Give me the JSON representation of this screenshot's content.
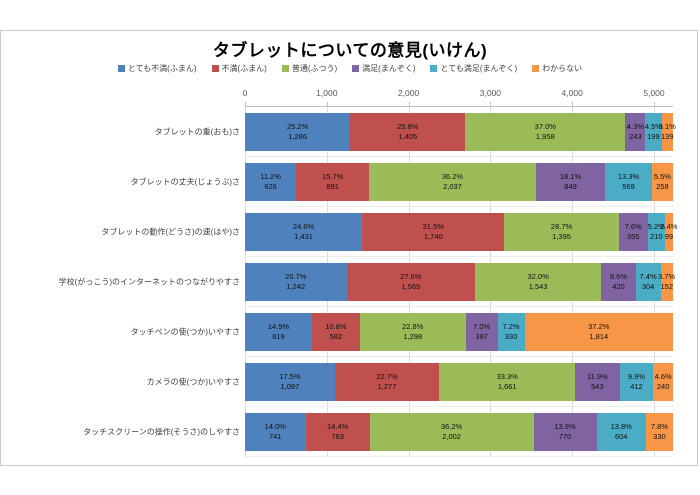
{
  "chart_data": {
    "type": "bar",
    "orientation": "horizontal-stacked",
    "title": "タブレットについての意見(いけん)",
    "legend_position": "top",
    "gridlines": true,
    "series_names": [
      "とても不満(ふまん)",
      "不満(ふまん)",
      "普通(ふつう)",
      "満足(まんぞく)",
      "とても満足(まんぞく)",
      "わからない"
    ],
    "series_colors": [
      "#4f81bd",
      "#c0504d",
      "#9bbb59",
      "#8064a2",
      "#4bacc6",
      "#f79646"
    ],
    "categories": [
      "タブレットの重(おも)さ",
      "タブレットの丈夫(じょうぶ)さ",
      "タブレットの動作(どうさ)の速(はや)さ",
      "学校(がっこう)のインターネットのつながりやすさ",
      "タッチペンの使(つか)いやすさ",
      "カメラの使(つか)いやすさ",
      "タッチスクリーンの操作(そうさ)のしやすさ"
    ],
    "x_axis": {
      "ticks": [
        "0",
        "1,000",
        "2,000",
        "3,000",
        "4,000",
        "5,000"
      ],
      "tick_values": [
        0,
        1000,
        2000,
        3000,
        4000,
        5000
      ],
      "max_tick": 5000
    },
    "row_total": 5230,
    "counts": [
      [
        1286,
        1405,
        1958,
        243,
        199,
        139
      ],
      [
        626,
        891,
        2037,
        849,
        569,
        258
      ],
      [
        1431,
        1740,
        1395,
        355,
        210,
        99
      ],
      [
        1242,
        1569,
        1543,
        420,
        304,
        152
      ],
      [
        819,
        582,
        1298,
        387,
        330,
        1814
      ],
      [
        1097,
        1277,
        1661,
        543,
        412,
        240
      ],
      [
        741,
        783,
        2002,
        770,
        604,
        330
      ]
    ],
    "values_pct": [
      [
        25.2,
        25.8,
        37.0,
        4.3,
        4.5,
        3.1
      ],
      [
        11.2,
        15.7,
        36.2,
        18.1,
        13.3,
        5.5
      ],
      [
        24.6,
        31.5,
        28.7,
        7.6,
        5.2,
        2.4
      ],
      [
        20.7,
        27.6,
        32.0,
        8.6,
        7.4,
        3.7
      ],
      [
        14.9,
        10.8,
        22.8,
        7.0,
        7.2,
        37.2
      ],
      [
        17.5,
        22.7,
        33.3,
        11.9,
        9.9,
        4.6
      ],
      [
        14.0,
        14.4,
        36.2,
        13.9,
        13.8,
        7.8
      ]
    ],
    "pct_labels": [
      [
        "25.2%",
        "25.8%",
        "37.0%",
        "4.3%",
        "4.5%",
        "3.1%"
      ],
      [
        "11.2%",
        "15.7%",
        "36.2%",
        "18.1%",
        "13.3%",
        "5.5%"
      ],
      [
        "24.6%",
        "31.5%",
        "28.7%",
        "7.6%",
        "5.2%",
        "2.4%"
      ],
      [
        "20.7%",
        "27.6%",
        "32.0%",
        "8.6%",
        "7.4%",
        "3.7%"
      ],
      [
        "14.9%",
        "10.8%",
        "22.8%",
        "7.0%",
        "7.2%",
        "37.2%"
      ],
      [
        "17.5%",
        "22.7%",
        "33.3%",
        "11.9%",
        "9.9%",
        "4.6%"
      ],
      [
        "14.0%",
        "14.4%",
        "36.2%",
        "13.9%",
        "13.8%",
        "7.8%"
      ]
    ],
    "count_labels": [
      [
        "1,286",
        "1,405",
        "1,958",
        "243",
        "199",
        "139"
      ],
      [
        "626",
        "891",
        "2,037",
        "849",
        "569",
        "258"
      ],
      [
        "1,431",
        "1,740",
        "1,395",
        "355",
        "210",
        "99"
      ],
      [
        "1,242",
        "1,569",
        "1,543",
        "420",
        "304",
        "152"
      ],
      [
        "819",
        "582",
        "1,298",
        "387",
        "330",
        "1,814"
      ],
      [
        "1,097",
        "1,277",
        "1,661",
        "543",
        "412",
        "240"
      ],
      [
        "741",
        "783",
        "2,002",
        "770",
        "604",
        "330"
      ]
    ]
  }
}
